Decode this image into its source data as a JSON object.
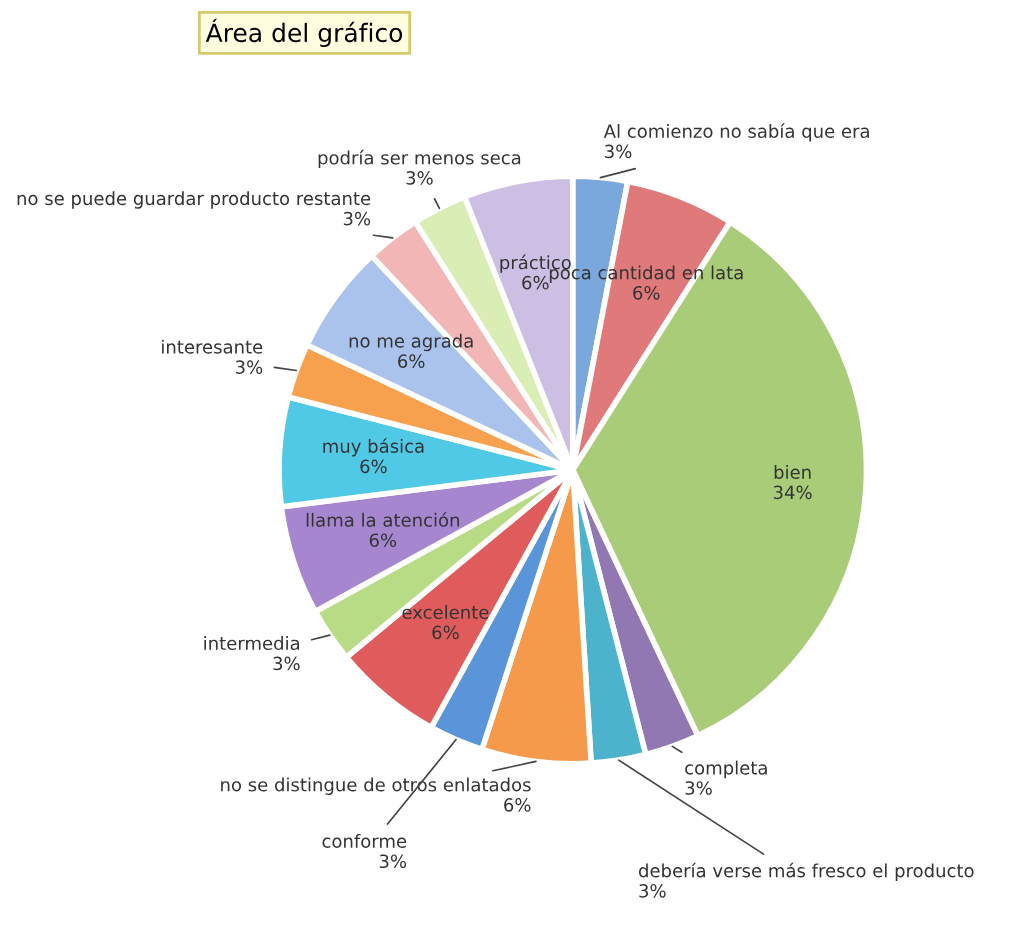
{
  "chart_data": {
    "type": "pie",
    "categories": [
      "Al comienzo no sabía que era",
      "poca cantidad en lata",
      "bien",
      "completa",
      "debería verse más fresco el producto",
      "no se distingue de otros enlatados",
      "conforme",
      "excelente",
      "intermedia",
      "llama la atención",
      "muy básica",
      "interesante",
      "no me agrada",
      "no se puede guardar producto restante",
      "podría ser menos seca",
      "práctico"
    ],
    "values": [
      3,
      6,
      34,
      3,
      3,
      6,
      3,
      6,
      3,
      6,
      6,
      3,
      6,
      3,
      3,
      6
    ],
    "value_labels": [
      "3%",
      "6%",
      "34%",
      "3%",
      "3%",
      "6%",
      "3%",
      "6%",
      "3%",
      "6%",
      "6%",
      "3%",
      "6%",
      "3%",
      "3%",
      "6%"
    ],
    "colors": [
      "#7aa7dc",
      "#e0797a",
      "#a9cc78",
      "#9278b3",
      "#4db3cc",
      "#f49a4a",
      "#5b95d9",
      "#e05c5c",
      "#b8dc86",
      "#a586cf",
      "#4fc9e6",
      "#f7a04e",
      "#a9c3ec",
      "#f2b6b6",
      "#d8eeb4",
      "#cdbfe3"
    ],
    "legend": false,
    "annotations": [
      "Área del gráfico"
    ]
  }
}
